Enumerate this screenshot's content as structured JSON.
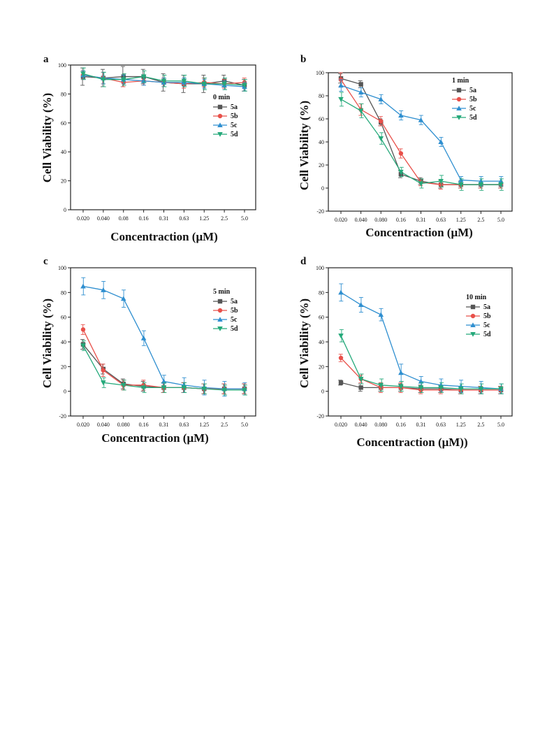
{
  "figure": {
    "series_styles": [
      {
        "name": "5a",
        "color": "#555555",
        "marker": "square"
      },
      {
        "name": "5b",
        "color": "#e8504a",
        "marker": "circle"
      },
      {
        "name": "5c",
        "color": "#2f8fd0",
        "marker": "triangle-up"
      },
      {
        "name": "5d",
        "color": "#24a97a",
        "marker": "triangle-down"
      }
    ]
  },
  "chart_data": [
    {
      "type": "line",
      "panel": "a",
      "legend_title": "0 min",
      "legend_position": "right-middle",
      "xlabel": "Concentraction (μM)",
      "ylabel": "Cell Viability (%)",
      "categories": [
        "0.020",
        "0.040",
        "0.08",
        "0.16",
        "0.31",
        "0.63",
        "1.25",
        "2.5",
        "5.0"
      ],
      "ylim": [
        0,
        100
      ],
      "yticks": [
        0,
        20,
        40,
        60,
        80,
        100
      ],
      "series": [
        {
          "name": "5a",
          "values": [
            92,
            91,
            92,
            92,
            88,
            87,
            87,
            89,
            86
          ],
          "errors": [
            6,
            6,
            7,
            5,
            6,
            6,
            6,
            4,
            4
          ]
        },
        {
          "name": "5b",
          "values": [
            93,
            91,
            88,
            89,
            88,
            87,
            88,
            87,
            88
          ],
          "errors": [
            3,
            4,
            3,
            3,
            3,
            3,
            3,
            3,
            3
          ]
        },
        {
          "name": "5c",
          "values": [
            93,
            91,
            90,
            89,
            88,
            88,
            87,
            86,
            85
          ],
          "errors": [
            3,
            4,
            3,
            3,
            3,
            3,
            3,
            3,
            3
          ]
        },
        {
          "name": "5d",
          "values": [
            94,
            90,
            90,
            92,
            89,
            89,
            87,
            87,
            86
          ],
          "errors": [
            4,
            5,
            4,
            4,
            4,
            4,
            4,
            4,
            4
          ]
        }
      ]
    },
    {
      "type": "line",
      "panel": "b",
      "legend_title": "1 min",
      "legend_position": "top-right",
      "xlabel": "Concentraction (μM)",
      "ylabel": "Cell Viability (%)",
      "categories": [
        "0.020",
        "0.040",
        "0.080",
        "0.16",
        "0.31",
        "0.63",
        "1.25",
        "2.5",
        "5.0"
      ],
      "ylim": [
        -20,
        100
      ],
      "yticks": [
        -20,
        0,
        20,
        40,
        60,
        80,
        100
      ],
      "series": [
        {
          "name": "5a",
          "values": [
            95,
            90,
            57,
            12,
            6,
            3,
            3,
            3,
            3
          ],
          "errors": [
            4,
            3,
            3,
            3,
            3,
            3,
            3,
            3,
            3
          ]
        },
        {
          "name": "5b",
          "values": [
            94,
            68,
            58,
            30,
            5,
            3,
            3,
            3,
            3
          ],
          "errors": [
            6,
            5,
            4,
            4,
            3,
            4,
            3,
            3,
            3
          ]
        },
        {
          "name": "5c",
          "values": [
            89,
            83,
            77,
            63,
            59,
            40,
            7,
            6,
            6
          ],
          "errors": [
            5,
            4,
            4,
            4,
            4,
            4,
            3,
            4,
            4
          ]
        },
        {
          "name": "5d",
          "values": [
            77,
            67,
            43,
            14,
            4,
            6,
            3,
            3,
            3
          ],
          "errors": [
            6,
            6,
            5,
            4,
            4,
            5,
            5,
            5,
            5
          ]
        }
      ]
    },
    {
      "type": "line",
      "panel": "c",
      "legend_title": "5 min",
      "legend_position": "right-middle",
      "xlabel": "Concentraction (μM)",
      "ylabel": "Cell Viability (%)",
      "categories": [
        "0.020",
        "0.040",
        "0.080",
        "0.16",
        "0.31",
        "0.63",
        "1.25",
        "2.5",
        "5.0"
      ],
      "ylim": [
        -20,
        100
      ],
      "yticks": [
        -20,
        0,
        20,
        40,
        60,
        80,
        100
      ],
      "series": [
        {
          "name": "5a",
          "values": [
            38,
            18,
            6,
            4,
            3,
            3,
            2,
            2,
            2
          ],
          "errors": [
            4,
            4,
            4,
            4,
            4,
            4,
            4,
            4,
            4
          ]
        },
        {
          "name": "5b",
          "values": [
            50,
            17,
            5,
            5,
            3,
            3,
            2,
            2,
            2
          ],
          "errors": [
            4,
            5,
            4,
            4,
            4,
            4,
            4,
            4,
            4
          ]
        },
        {
          "name": "5c",
          "values": [
            85,
            82,
            75,
            43,
            8,
            5,
            3,
            2,
            2
          ],
          "errors": [
            7,
            7,
            7,
            6,
            5,
            6,
            6,
            6,
            5
          ]
        },
        {
          "name": "5d",
          "values": [
            37,
            7,
            5,
            3,
            3,
            3,
            2,
            1,
            1
          ],
          "errors": [
            4,
            4,
            4,
            4,
            4,
            4,
            4,
            4,
            4
          ]
        }
      ]
    },
    {
      "type": "line",
      "panel": "d",
      "legend_title": "10 min",
      "legend_position": "right-middle",
      "xlabel": "Concentraction (μM))",
      "ylabel": "Cell Viability (%)",
      "categories": [
        "0.020",
        "0.040",
        "0.080",
        "0.16",
        "0.31",
        "0.63",
        "1.25",
        "2.5",
        "5.0"
      ],
      "ylim": [
        -20,
        100
      ],
      "yticks": [
        -20,
        0,
        20,
        40,
        60,
        80,
        100
      ],
      "series": [
        {
          "name": "5a",
          "values": [
            7,
            3,
            3,
            3,
            2,
            2,
            1,
            1,
            1
          ],
          "errors": [
            2,
            3,
            3,
            3,
            3,
            3,
            3,
            3,
            3
          ]
        },
        {
          "name": "5b",
          "values": [
            27,
            10,
            3,
            3,
            1,
            1,
            1,
            1,
            1
          ],
          "errors": [
            3,
            3,
            4,
            4,
            3,
            3,
            3,
            3,
            3
          ]
        },
        {
          "name": "5c",
          "values": [
            80,
            70,
            62,
            15,
            8,
            5,
            4,
            3,
            2
          ],
          "errors": [
            7,
            6,
            5,
            7,
            4,
            5,
            5,
            5,
            4
          ]
        },
        {
          "name": "5d",
          "values": [
            45,
            10,
            5,
            4,
            3,
            3,
            2,
            2,
            2
          ],
          "errors": [
            5,
            4,
            5,
            4,
            4,
            4,
            4,
            4,
            4
          ]
        }
      ]
    }
  ]
}
